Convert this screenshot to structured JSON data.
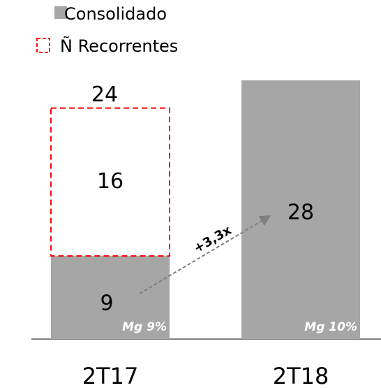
{
  "chart_data": {
    "type": "stacked_bar",
    "categories": [
      "2T17",
      "2T18"
    ],
    "series": [
      {
        "name": "Consolidado",
        "color": "#a6a6a6",
        "values": [
          9,
          28
        ]
      },
      {
        "name": "Ñ Recorrentes",
        "color": "#ff0000",
        "values": [
          16,
          null
        ]
      }
    ],
    "totals": [
      24,
      null
    ],
    "margin_labels": [
      "Mg 9%",
      "Mg 10%"
    ],
    "annotation": "+3,3x"
  }
}
